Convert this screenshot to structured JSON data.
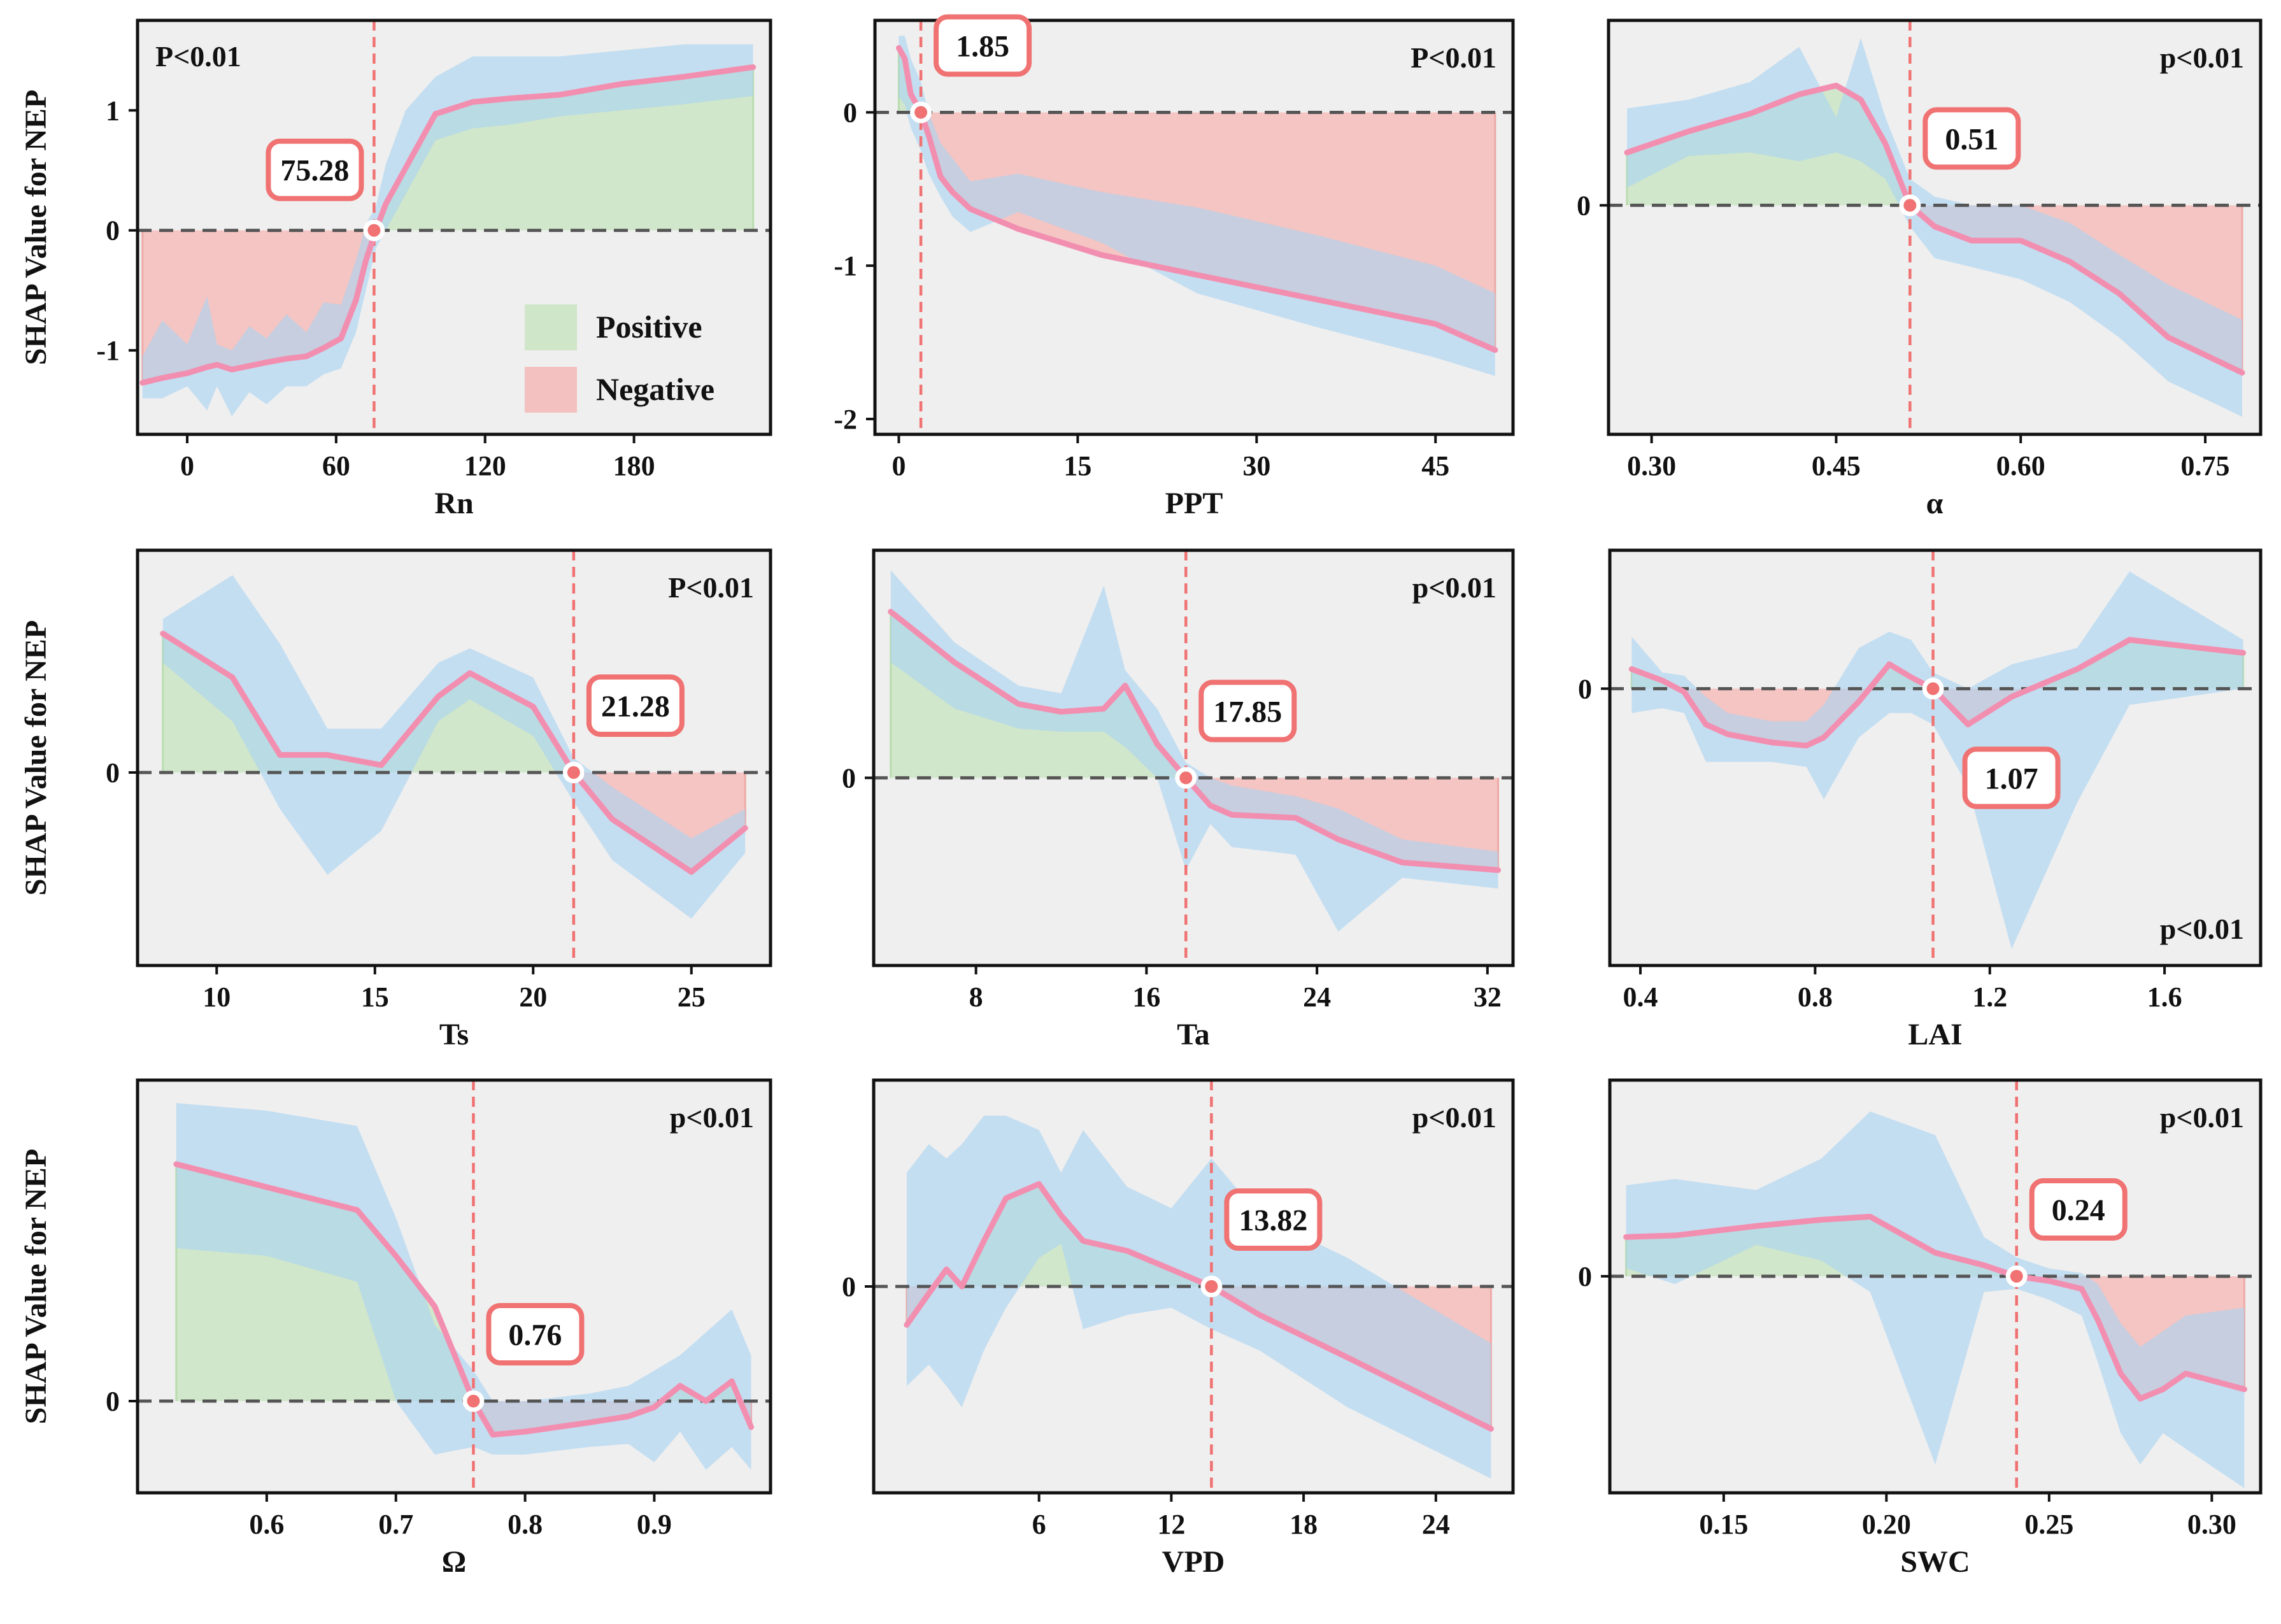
{
  "colors": {
    "panel_bg": "#efefef",
    "frame": "#111111",
    "curve": "#f28fb0",
    "band": "#a9d4f2",
    "positive_fill": "#cfe6c8",
    "negative_fill": "#f3c2c0",
    "threshold_line": "#f07272",
    "zero_line": "#555555",
    "label_border": "#f07272"
  },
  "legend": {
    "positive": "Positive",
    "negative": "Negative"
  },
  "chart_data": [
    {
      "id": "rn",
      "type": "line",
      "xlabel": "Rn",
      "ylabel": "SHAP Value for NEP",
      "xlim": [
        -20,
        235
      ],
      "ylim": [
        -1.7,
        1.75
      ],
      "xticks": [
        0,
        60,
        120,
        180
      ],
      "xtick_labels": [
        "0",
        "60",
        "120",
        "180"
      ],
      "yticks": [
        -1,
        0,
        1
      ],
      "ytick_labels": [
        "-1",
        "0",
        "1"
      ],
      "threshold": 75.28,
      "threshold_label": "75.28",
      "p_value": "P<0.01",
      "p_position": "top-left",
      "label_position": "above-left",
      "legend": true,
      "x": [
        -18,
        -10,
        0,
        8,
        12,
        18,
        25,
        32,
        40,
        48,
        55,
        62,
        68,
        72,
        76,
        80,
        88,
        100,
        115,
        130,
        150,
        175,
        200,
        228
      ],
      "y": [
        -1.27,
        -1.23,
        -1.19,
        -1.14,
        -1.12,
        -1.16,
        -1.13,
        -1.1,
        -1.07,
        -1.05,
        -0.98,
        -0.9,
        -0.58,
        -0.25,
        0,
        0.22,
        0.52,
        0.97,
        1.07,
        1.1,
        1.13,
        1.22,
        1.28,
        1.36
      ],
      "band_upper": [
        -1.05,
        -0.75,
        -0.95,
        -0.55,
        -0.95,
        -1.0,
        -0.8,
        -0.9,
        -0.7,
        -0.85,
        -0.6,
        -0.62,
        -0.25,
        0.05,
        0.2,
        0.55,
        1.0,
        1.28,
        1.45,
        1.45,
        1.45,
        1.5,
        1.55,
        1.55
      ],
      "band_lower": [
        -1.4,
        -1.4,
        -1.3,
        -1.5,
        -1.3,
        -1.55,
        -1.35,
        -1.45,
        -1.3,
        -1.3,
        -1.2,
        -1.15,
        -0.85,
        -0.5,
        -0.15,
        0.0,
        0.3,
        0.75,
        0.85,
        0.88,
        0.95,
        1.0,
        1.05,
        1.12
      ]
    },
    {
      "id": "ppt",
      "type": "line",
      "xlabel": "PPT",
      "ylabel": "",
      "xlim": [
        -2,
        51.5
      ],
      "ylim": [
        -2.1,
        0.6
      ],
      "xticks": [
        0,
        15,
        30,
        45
      ],
      "xtick_labels": [
        "0",
        "15",
        "30",
        "45"
      ],
      "yticks": [
        -2,
        -1,
        0
      ],
      "ytick_labels": [
        "-2",
        "-1",
        "0"
      ],
      "threshold": 1.85,
      "threshold_label": "1.85",
      "p_value": "P<0.01",
      "p_position": "top-right",
      "label_position": "above-right",
      "legend": false,
      "x": [
        0,
        0.5,
        1,
        1.85,
        2.5,
        3.5,
        4.5,
        6,
        10,
        17,
        25,
        35,
        45,
        50
      ],
      "y": [
        0.42,
        0.35,
        0.12,
        0,
        -0.15,
        -0.42,
        -0.52,
        -0.63,
        -0.76,
        -0.93,
        -1.06,
        -1.22,
        -1.38,
        -1.55
      ],
      "band_upper": [
        0.5,
        0.5,
        0.35,
        0.2,
        0.0,
        -0.2,
        -0.3,
        -0.45,
        -0.4,
        -0.52,
        -0.62,
        -0.8,
        -1.0,
        -1.18
      ],
      "band_lower": [
        0.1,
        0.05,
        -0.1,
        -0.25,
        -0.4,
        -0.55,
        -0.68,
        -0.78,
        -0.65,
        -0.85,
        -1.18,
        -1.4,
        -1.6,
        -1.72
      ]
    },
    {
      "id": "alpha",
      "type": "line",
      "xlabel": "α",
      "ylabel": "",
      "xlim": [
        0.265,
        0.795
      ],
      "ylim": [
        -1.3,
        1.05
      ],
      "xticks": [
        0.3,
        0.45,
        0.6,
        0.75
      ],
      "xtick_labels": [
        "0.30",
        "0.45",
        "0.60",
        "0.75"
      ],
      "yticks": [
        0
      ],
      "ytick_labels": [
        "0"
      ],
      "threshold": 0.51,
      "threshold_label": "0.51",
      "p_value": "p<0.01",
      "p_position": "top-right",
      "label_position": "above-right",
      "legend": false,
      "x": [
        0.28,
        0.33,
        0.38,
        0.42,
        0.45,
        0.47,
        0.49,
        0.51,
        0.53,
        0.56,
        0.6,
        0.64,
        0.68,
        0.72,
        0.78
      ],
      "y": [
        0.3,
        0.42,
        0.52,
        0.63,
        0.68,
        0.6,
        0.35,
        0.0,
        -0.12,
        -0.2,
        -0.2,
        -0.32,
        -0.5,
        -0.75,
        -0.95
      ],
      "band_upper": [
        0.55,
        0.6,
        0.7,
        0.9,
        0.5,
        0.95,
        0.5,
        0.15,
        0.05,
        0.0,
        0.0,
        -0.1,
        -0.28,
        -0.45,
        -0.65
      ],
      "band_lower": [
        0.1,
        0.28,
        0.3,
        0.25,
        0.3,
        0.25,
        0.15,
        -0.12,
        -0.3,
        -0.35,
        -0.42,
        -0.55,
        -0.75,
        -1.0,
        -1.2
      ]
    },
    {
      "id": "ts",
      "type": "line",
      "xlabel": "Ts",
      "ylabel": "SHAP Value for NEP",
      "xlim": [
        7.5,
        27.5
      ],
      "ylim": [
        -1.32,
        1.52
      ],
      "xticks": [
        10,
        15,
        20,
        25
      ],
      "xtick_labels": [
        "10",
        "15",
        "20",
        "25"
      ],
      "yticks": [
        0
      ],
      "ytick_labels": [
        "0"
      ],
      "threshold": 21.28,
      "threshold_label": "21.28",
      "p_value": "P<0.01",
      "p_position": "top-right",
      "label_position": "above-right",
      "legend": false,
      "x": [
        8.3,
        10.5,
        12,
        13.5,
        15.2,
        17,
        18,
        20,
        21.28,
        22.5,
        25,
        26.7
      ],
      "y": [
        0.95,
        0.65,
        0.12,
        0.12,
        0.05,
        0.52,
        0.68,
        0.45,
        0.0,
        -0.32,
        -0.68,
        -0.38
      ],
      "band_upper": [
        1.05,
        1.35,
        0.88,
        0.3,
        0.3,
        0.75,
        0.85,
        0.65,
        0.1,
        -0.1,
        -0.45,
        -0.25
      ],
      "band_lower": [
        0.75,
        0.35,
        -0.25,
        -0.7,
        -0.4,
        0.35,
        0.5,
        0.25,
        -0.2,
        -0.6,
        -1.0,
        -0.55
      ]
    },
    {
      "id": "ta",
      "type": "line",
      "xlabel": "Ta",
      "ylabel": "",
      "xlim": [
        3.2,
        33.2
      ],
      "ylim": [
        -1.22,
        1.48
      ],
      "xticks": [
        8,
        16,
        24,
        32
      ],
      "xtick_labels": [
        "8",
        "16",
        "24",
        "32"
      ],
      "yticks": [
        0
      ],
      "ytick_labels": [
        "0"
      ],
      "threshold": 17.85,
      "threshold_label": "17.85",
      "p_value": "p<0.01",
      "p_position": "top-right",
      "label_position": "above-right",
      "legend": false,
      "x": [
        4,
        7,
        10,
        12,
        14,
        15,
        16.5,
        17.85,
        19,
        20,
        23,
        25,
        28,
        32.5
      ],
      "y": [
        1.08,
        0.75,
        0.48,
        0.43,
        0.45,
        0.6,
        0.22,
        0.0,
        -0.18,
        -0.24,
        -0.26,
        -0.4,
        -0.55,
        -0.6
      ],
      "band_upper": [
        1.35,
        0.88,
        0.6,
        0.55,
        1.25,
        0.7,
        0.45,
        0.1,
        0.0,
        -0.05,
        -0.12,
        -0.2,
        -0.4,
        -0.48
      ],
      "band_lower": [
        0.75,
        0.45,
        0.32,
        0.3,
        0.3,
        0.2,
        0.0,
        -0.6,
        -0.3,
        -0.45,
        -0.5,
        -1.0,
        -0.65,
        -0.72
      ]
    },
    {
      "id": "lai",
      "type": "line",
      "xlabel": "LAI",
      "ylabel": "",
      "xlim": [
        0.33,
        1.82
      ],
      "ylim": [
        -1.7,
        0.85
      ],
      "xticks": [
        0.4,
        0.8,
        1.2,
        1.6
      ],
      "xtick_labels": [
        "0.4",
        "0.8",
        "1.2",
        "1.6"
      ],
      "yticks": [
        0
      ],
      "ytick_labels": [
        "0"
      ],
      "threshold": 1.07,
      "threshold_label": "1.07",
      "p_value": "p<0.01",
      "p_position": "bottom-right",
      "label_position": "below-right",
      "legend": false,
      "x": [
        0.38,
        0.45,
        0.5,
        0.55,
        0.6,
        0.7,
        0.78,
        0.82,
        0.9,
        0.97,
        1.02,
        1.07,
        1.15,
        1.25,
        1.4,
        1.52,
        1.78
      ],
      "y": [
        0.12,
        0.05,
        -0.02,
        -0.22,
        -0.28,
        -0.33,
        -0.35,
        -0.3,
        -0.08,
        0.15,
        0.07,
        0.0,
        -0.22,
        -0.05,
        0.12,
        0.3,
        0.22
      ],
      "band_upper": [
        0.32,
        0.1,
        0.08,
        -0.05,
        -0.15,
        -0.2,
        -0.2,
        -0.1,
        0.25,
        0.35,
        0.3,
        0.1,
        0.0,
        0.15,
        0.25,
        0.72,
        0.3
      ],
      "band_lower": [
        -0.15,
        -0.12,
        -0.15,
        -0.45,
        -0.45,
        -0.45,
        -0.48,
        -0.68,
        -0.3,
        -0.15,
        -0.15,
        -0.22,
        -0.6,
        -1.6,
        -0.7,
        -0.1,
        0.0
      ]
    },
    {
      "id": "omega",
      "type": "line",
      "xlabel": "Ω",
      "ylabel": "SHAP Value for NEP",
      "xlim": [
        0.5,
        0.99
      ],
      "ylim": [
        -0.6,
        2.1
      ],
      "xticks": [
        0.6,
        0.7,
        0.8,
        0.9
      ],
      "xtick_labels": [
        "0.6",
        "0.7",
        "0.8",
        "0.9"
      ],
      "yticks": [
        0
      ],
      "ytick_labels": [
        "0"
      ],
      "threshold": 0.76,
      "threshold_label": "0.76",
      "p_value": "p<0.01",
      "p_position": "top-right",
      "label_position": "above-right",
      "legend": false,
      "x": [
        0.53,
        0.6,
        0.67,
        0.7,
        0.73,
        0.76,
        0.775,
        0.8,
        0.85,
        0.88,
        0.9,
        0.92,
        0.94,
        0.96,
        0.975
      ],
      "y": [
        1.55,
        1.4,
        1.25,
        0.95,
        0.62,
        0.0,
        -0.22,
        -0.2,
        -0.14,
        -0.1,
        -0.04,
        0.1,
        0.0,
        0.13,
        -0.17
      ],
      "band_upper": [
        1.95,
        1.9,
        1.8,
        1.2,
        0.5,
        0.2,
        0.0,
        0.0,
        0.05,
        0.1,
        0.2,
        0.3,
        0.45,
        0.6,
        0.3
      ],
      "band_lower": [
        1.0,
        0.95,
        0.78,
        0.0,
        -0.35,
        -0.3,
        -0.35,
        -0.35,
        -0.3,
        -0.28,
        -0.4,
        -0.2,
        -0.45,
        -0.3,
        -0.45
      ]
    },
    {
      "id": "vpd",
      "type": "line",
      "xlabel": "VPD",
      "ylabel": "",
      "xlim": [
        -1.5,
        27.5
      ],
      "ylim": [
        -1.45,
        1.45
      ],
      "xticks": [
        6,
        12,
        18,
        24
      ],
      "xtick_labels": [
        "6",
        "12",
        "18",
        "24"
      ],
      "yticks": [
        0
      ],
      "ytick_labels": [
        "0"
      ],
      "threshold": 13.82,
      "threshold_label": "13.82",
      "p_value": "p<0.01",
      "p_position": "top-right",
      "label_position": "above-right",
      "legend": false,
      "x": [
        0,
        1,
        1.8,
        2.5,
        3.5,
        4.5,
        6,
        7,
        8,
        10,
        12,
        13.82,
        16,
        20,
        26.5
      ],
      "y": [
        -0.27,
        -0.05,
        0.12,
        0.0,
        0.32,
        0.62,
        0.72,
        0.5,
        0.32,
        0.25,
        0.12,
        0.0,
        -0.2,
        -0.5,
        -1.0
      ],
      "band_upper": [
        0.8,
        1.0,
        0.9,
        1.0,
        1.2,
        1.2,
        1.1,
        0.8,
        1.1,
        0.7,
        0.55,
        0.9,
        0.5,
        0.2,
        -0.4
      ],
      "band_lower": [
        -0.7,
        -0.55,
        -0.7,
        -0.85,
        -0.45,
        -0.15,
        0.2,
        0.3,
        -0.3,
        -0.2,
        -0.15,
        -0.3,
        -0.45,
        -0.85,
        -1.35
      ]
    },
    {
      "id": "swc",
      "type": "line",
      "xlabel": "SWC",
      "ylabel": "",
      "xlim": [
        0.115,
        0.315
      ],
      "ylim": [
        -1.38,
        1.25
      ],
      "xticks": [
        0.15,
        0.2,
        0.25,
        0.3
      ],
      "xtick_labels": [
        "0.15",
        "0.20",
        "0.25",
        "0.30"
      ],
      "yticks": [
        0
      ],
      "ytick_labels": [
        "0"
      ],
      "threshold": 0.24,
      "threshold_label": "0.24",
      "p_value": "p<0.01",
      "p_position": "top-right",
      "label_position": "above-right",
      "legend": false,
      "x": [
        0.12,
        0.135,
        0.16,
        0.18,
        0.195,
        0.215,
        0.23,
        0.24,
        0.25,
        0.26,
        0.265,
        0.272,
        0.278,
        0.285,
        0.292,
        0.31
      ],
      "y": [
        0.25,
        0.26,
        0.32,
        0.36,
        0.38,
        0.15,
        0.07,
        0.0,
        -0.03,
        -0.08,
        -0.28,
        -0.62,
        -0.78,
        -0.72,
        -0.62,
        -0.72
      ],
      "band_upper": [
        0.58,
        0.62,
        0.55,
        0.75,
        1.05,
        0.9,
        0.25,
        0.12,
        0.05,
        0.02,
        -0.05,
        -0.3,
        -0.45,
        -0.35,
        -0.25,
        -0.2
      ],
      "band_lower": [
        0.05,
        -0.05,
        0.2,
        0.1,
        -0.1,
        -1.2,
        -0.1,
        -0.08,
        -0.15,
        -0.25,
        -0.55,
        -1.0,
        -1.2,
        -1.0,
        -1.1,
        -1.35
      ]
    }
  ]
}
